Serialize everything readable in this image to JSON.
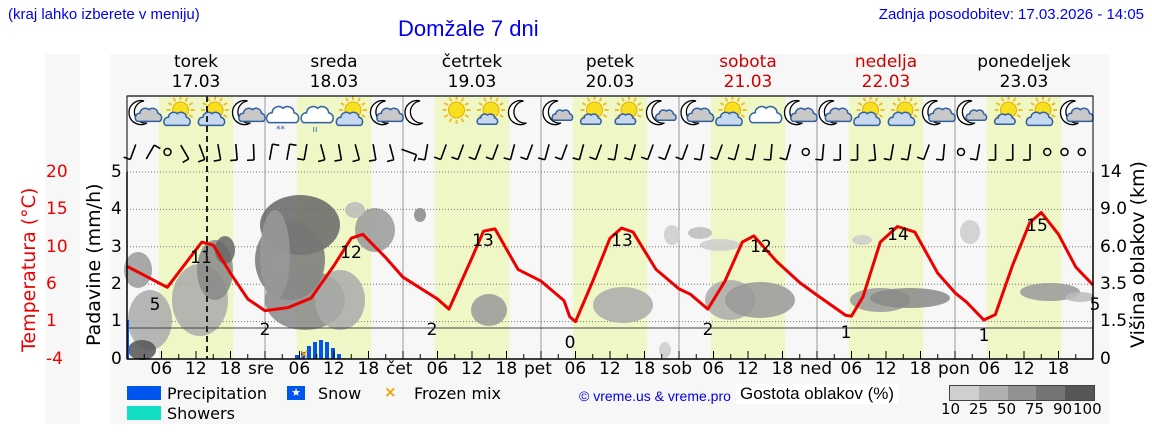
{
  "header": {
    "note": "(kraj lahko izberete v meniju)",
    "title": "Domžale 7 dni",
    "updated": "Zadnja posodobitev: 17.03.2026 - 14:05"
  },
  "days": [
    {
      "name": "torek",
      "date": "17.03",
      "weekend": false,
      "abbr": ""
    },
    {
      "name": "sreda",
      "date": "18.03",
      "weekend": false,
      "abbr": "sre"
    },
    {
      "name": "četrtek",
      "date": "19.03",
      "weekend": false,
      "abbr": "čet"
    },
    {
      "name": "petek",
      "date": "20.03",
      "weekend": false,
      "abbr": "pet"
    },
    {
      "name": "sobota",
      "date": "21.03",
      "weekend": true,
      "abbr": "sob"
    },
    {
      "name": "nedelja",
      "date": "22.03",
      "weekend": true,
      "abbr": "ned"
    },
    {
      "name": "ponedeljek",
      "date": "23.03",
      "weekend": false,
      "abbr": "pon"
    }
  ],
  "axes": {
    "left_temp_title": "Temperatura (°C)",
    "left_temp_ticks": [
      "20",
      "15",
      "10",
      "6",
      "1",
      "-4"
    ],
    "left_precip_title": "Padavine (mm/h)",
    "left_precip_ticks": [
      "5",
      "4",
      "3",
      "2",
      "1",
      "0"
    ],
    "right_title": "Višina oblakov (km)",
    "right_ticks": [
      "14",
      "9.0",
      "6.0",
      "3.5",
      "1.5",
      "0"
    ],
    "hour_ticks": [
      "06",
      "12",
      "18"
    ]
  },
  "icons": [
    "night-partly-cloudy",
    "sun-cloud",
    "sun-cloud",
    "night-partly-cloudy",
    "snow-cloud",
    "rain-cloud",
    "sun-cloud",
    "night-partly-cloudy",
    "night-clear",
    "sun",
    "sun-small-cloud",
    "night-clear",
    "night-small-cloud",
    "sun-small-cloud",
    "sun-small-cloud",
    "night-small-cloud",
    "night-partly-cloudy",
    "sun-cloud",
    "cloud",
    "night-partly-cloudy",
    "night-partly-cloudy",
    "sun-cloud",
    "sun-cloud",
    "night-partly-cloudy",
    "night-small-cloud",
    "sun-small-cloud",
    "sun-cloud",
    "night-partly-cloudy"
  ],
  "legend": {
    "precipitation": "Precipitation",
    "snow": "Snow",
    "frozen_mix": "Frozen mix",
    "showers": "Showers",
    "copyright": "© vreme.us & vreme.pro",
    "cloud_density_title": "Gostota oblakov (%)",
    "cloud_density_ticks": [
      "10",
      "25",
      "50",
      "75",
      "90",
      "100"
    ],
    "colors": {
      "precipitation": "#0055ee",
      "snow": "#0055ee",
      "frozen_mix": "#f0a000",
      "showers": "#11ddc4",
      "temperature": "#ee0000",
      "daylight": "#eff7c7"
    }
  },
  "chart_data": {
    "type": "line",
    "title": "Domžale 7 dni",
    "xlabel": "",
    "ylabel": "Temperatura (°C)",
    "ylim": [
      -4,
      20
    ],
    "now_marker": "17.03 14:05",
    "series": [
      {
        "name": "Temperatura (°C)",
        "points": [
          {
            "t": "17.03 00",
            "v": 8
          },
          {
            "t": "17.03 07",
            "v": 5
          },
          {
            "t": "17.03 14",
            "v": 11
          },
          {
            "t": "18.03 00",
            "v": 2
          },
          {
            "t": "18.03 14",
            "v": 12
          },
          {
            "t": "19.03 06",
            "v": 2
          },
          {
            "t": "19.03 14",
            "v": 13
          },
          {
            "t": "20.03 05",
            "v": 0
          },
          {
            "t": "20.03 14",
            "v": 13
          },
          {
            "t": "21.03 05",
            "v": 2
          },
          {
            "t": "21.03 14",
            "v": 12
          },
          {
            "t": "22.03 05",
            "v": 1
          },
          {
            "t": "22.03 14",
            "v": 14
          },
          {
            "t": "23.03 05",
            "v": 1
          },
          {
            "t": "23.03 15",
            "v": 15
          },
          {
            "t": "24.03 00",
            "v": 5
          }
        ]
      },
      {
        "name": "Padavine (mm/h)",
        "points": [
          {
            "t": "18.03 05",
            "v": 0.1
          },
          {
            "t": "18.03 06",
            "v": 0.2
          },
          {
            "t": "18.03 07",
            "v": 0.3
          },
          {
            "t": "18.03 08",
            "v": 0.4
          },
          {
            "t": "18.03 09",
            "v": 0.45
          },
          {
            "t": "18.03 10",
            "v": 0.4
          },
          {
            "t": "18.03 11",
            "v": 0.3
          },
          {
            "t": "18.03 12",
            "v": 0.1
          }
        ]
      }
    ],
    "labels": {
      "temp_extremes": [
        "5",
        "11",
        "2",
        "12",
        "2",
        "13",
        "0",
        "13",
        "2",
        "12",
        "1",
        "14",
        "1",
        "15",
        "5"
      ]
    },
    "precip_ylim": [
      0,
      5
    ],
    "cloud_height_ticks_km": [
      0,
      1.5,
      3.5,
      6.0,
      9.0,
      14
    ],
    "grid": true
  }
}
